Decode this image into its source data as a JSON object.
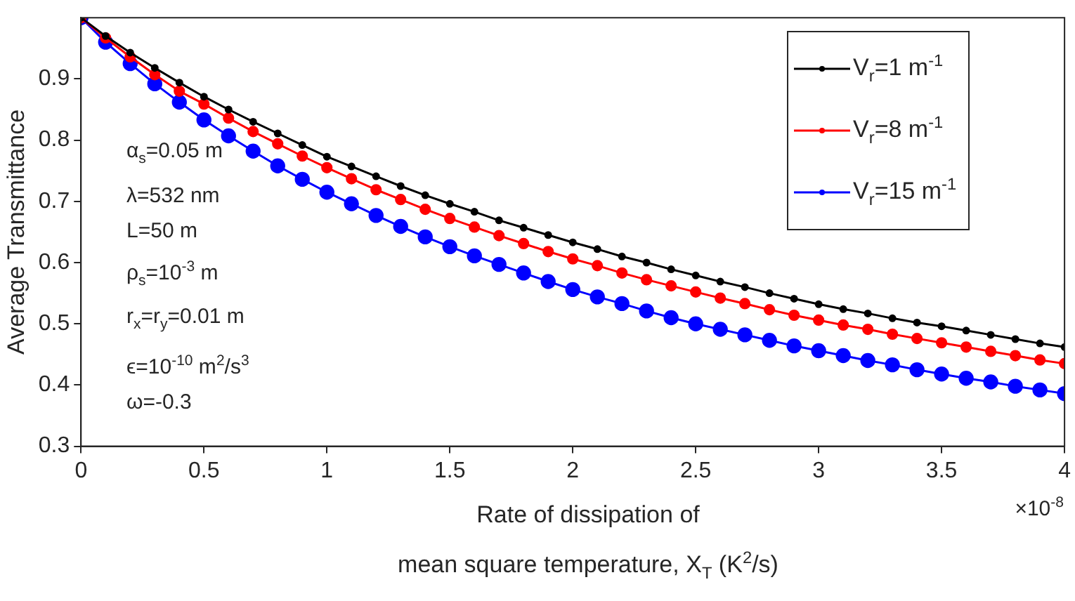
{
  "chart_data": {
    "type": "line",
    "ylabel": "Average Transmittance",
    "xlabel": "Rate of dissipation of\nmean square temperature, X$_{T}$ (K$^{2}$/s)",
    "x": [
      0,
      0.1,
      0.2,
      0.3,
      0.4,
      0.5,
      0.6,
      0.7,
      0.8,
      0.9,
      1,
      1.1,
      1.2,
      1.3,
      1.4,
      1.5,
      1.6,
      1.7,
      1.8,
      1.9,
      2,
      2.1,
      2.2,
      2.3,
      2.4,
      2.5,
      2.6,
      2.7,
      2.8,
      2.9,
      3,
      3.1,
      3.2,
      3.3,
      3.4,
      3.5,
      3.6,
      3.7,
      3.8,
      3.9,
      4
    ],
    "series": [
      {
        "name": "V$_{r}$=1 m$^{-1}$",
        "color": "#000000",
        "marker": "circle",
        "values": [
          1,
          0.97,
          0.943,
          0.918,
          0.894,
          0.871,
          0.85,
          0.83,
          0.811,
          0.792,
          0.773,
          0.757,
          0.741,
          0.725,
          0.71,
          0.696,
          0.683,
          0.669,
          0.657,
          0.645,
          0.633,
          0.622,
          0.61,
          0.6,
          0.589,
          0.579,
          0.569,
          0.56,
          0.55,
          0.541,
          0.532,
          0.524,
          0.517,
          0.509,
          0.502,
          0.496,
          0.489,
          0.482,
          0.475,
          0.468,
          0.462
        ]
      },
      {
        "name": "V$_{r}$=8 m$^{-1}$",
        "color": "#ff0000",
        "marker": "circle",
        "values": [
          1,
          0.967,
          0.936,
          0.907,
          0.88,
          0.859,
          0.836,
          0.814,
          0.794,
          0.774,
          0.755,
          0.737,
          0.719,
          0.703,
          0.687,
          0.672,
          0.658,
          0.644,
          0.631,
          0.618,
          0.606,
          0.595,
          0.583,
          0.572,
          0.562,
          0.552,
          0.542,
          0.533,
          0.523,
          0.514,
          0.506,
          0.498,
          0.491,
          0.483,
          0.476,
          0.469,
          0.462,
          0.455,
          0.448,
          0.441,
          0.435
        ]
      },
      {
        "name": "V$_{r}$=15 m$^{-1}$",
        "color": "#0000ff",
        "marker": "circle",
        "values": [
          1,
          0.96,
          0.925,
          0.892,
          0.862,
          0.833,
          0.807,
          0.782,
          0.758,
          0.736,
          0.715,
          0.696,
          0.677,
          0.659,
          0.642,
          0.626,
          0.611,
          0.597,
          0.583,
          0.569,
          0.556,
          0.544,
          0.533,
          0.521,
          0.51,
          0.5,
          0.491,
          0.482,
          0.473,
          0.464,
          0.456,
          0.448,
          0.44,
          0.433,
          0.425,
          0.418,
          0.411,
          0.405,
          0.398,
          0.392,
          0.386
        ]
      }
    ],
    "xlim": [
      0,
      4
    ],
    "xticks": [
      0,
      0.5,
      1,
      1.5,
      2,
      2.5,
      3,
      3.5,
      4
    ],
    "ylim": [
      0.3,
      1
    ],
    "yticks": [
      0.3,
      0.4,
      0.5,
      0.6,
      0.7,
      0.8,
      0.9
    ],
    "grid": false,
    "legend": "top right",
    "line_style": "solid",
    "annotations": [
      "α$_{s}$=0.05 m",
      "λ=532 nm",
      "L=50 m",
      "ρ$_{s}$=10$^{-3}$ m",
      "r$_{x}$=r$_{y}$=0.01 m",
      "ϵ=10$^{-10}$ m$^{2}$/s$^{3}$",
      "ω=-0.3",
      "×10$^{-8}$"
    ]
  }
}
